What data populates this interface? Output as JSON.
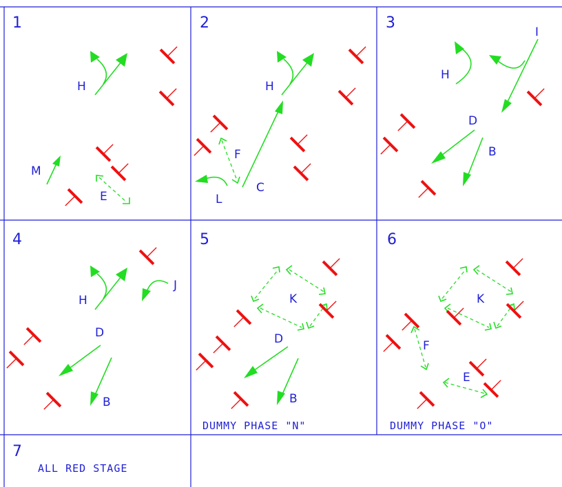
{
  "panels": [
    {
      "number": "1",
      "labels": {
        "H": "H",
        "M": "M",
        "E": "E"
      }
    },
    {
      "number": "2",
      "labels": {
        "H": "H",
        "F": "F",
        "L": "L",
        "C": "C"
      }
    },
    {
      "number": "3",
      "labels": {
        "H": "H",
        "I": "I",
        "D": "D",
        "B": "B"
      }
    },
    {
      "number": "4",
      "labels": {
        "H": "H",
        "J": "J",
        "D": "D",
        "B": "B"
      }
    },
    {
      "number": "5",
      "labels": {
        "K": "K",
        "D": "D",
        "B": "B"
      },
      "caption": "DUMMY PHASE \"N\""
    },
    {
      "number": "6",
      "labels": {
        "K": "K",
        "F": "F",
        "E": "E"
      },
      "caption": "DUMMY PHASE \"O\""
    },
    {
      "number": "7",
      "caption": "ALL RED STAGE"
    }
  ],
  "colors": {
    "grid": "#1f1fd6",
    "movement": "#22dd22",
    "signal": "#ee1111",
    "text": "#1f1fd6"
  }
}
